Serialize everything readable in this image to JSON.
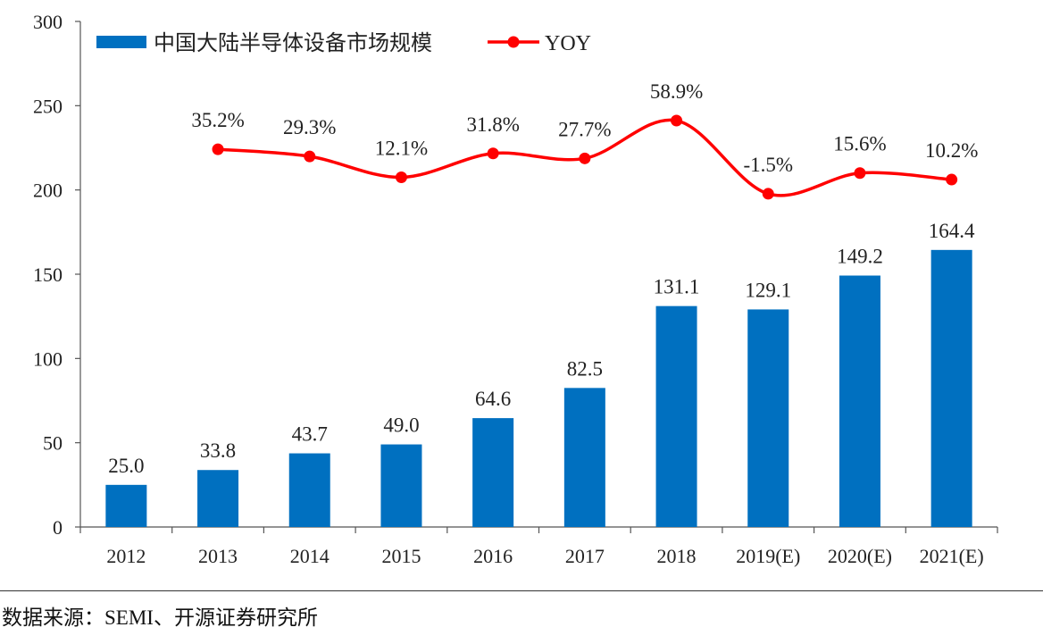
{
  "chart_data": {
    "type": "bar",
    "categories": [
      "2012",
      "2013",
      "2014",
      "2015",
      "2016",
      "2017",
      "2018",
      "2019(E)",
      "2020(E)",
      "2021(E)"
    ],
    "series": [
      {
        "name": "中国大陆半导体设备市场规模",
        "type": "bar",
        "values": [
          25.0,
          33.8,
          43.7,
          49.0,
          64.6,
          82.5,
          131.1,
          129.1,
          149.2,
          164.4
        ],
        "labels": [
          "25.0",
          "33.8",
          "43.7",
          "49.0",
          "64.6",
          "82.5",
          "131.1",
          "129.1",
          "149.2",
          "164.4"
        ],
        "color": "#0070C0"
      },
      {
        "name": "YOY",
        "type": "line",
        "values": [
          null,
          35.2,
          29.3,
          12.1,
          31.8,
          27.7,
          58.9,
          -1.5,
          15.6,
          10.2
        ],
        "labels": [
          null,
          "35.2%",
          "29.3%",
          "12.1%",
          "31.8%",
          "27.7%",
          "58.9%",
          "-1.5%",
          "15.6%",
          "10.2%"
        ],
        "color": "#FF0000"
      }
    ],
    "ylim": [
      0,
      300
    ],
    "yticks": [
      "0",
      "50",
      "100",
      "150",
      "200",
      "250",
      "300"
    ],
    "legend_position": "top-left",
    "grid": false
  },
  "source_note": "数据来源：SEMI、开源证券研究所"
}
